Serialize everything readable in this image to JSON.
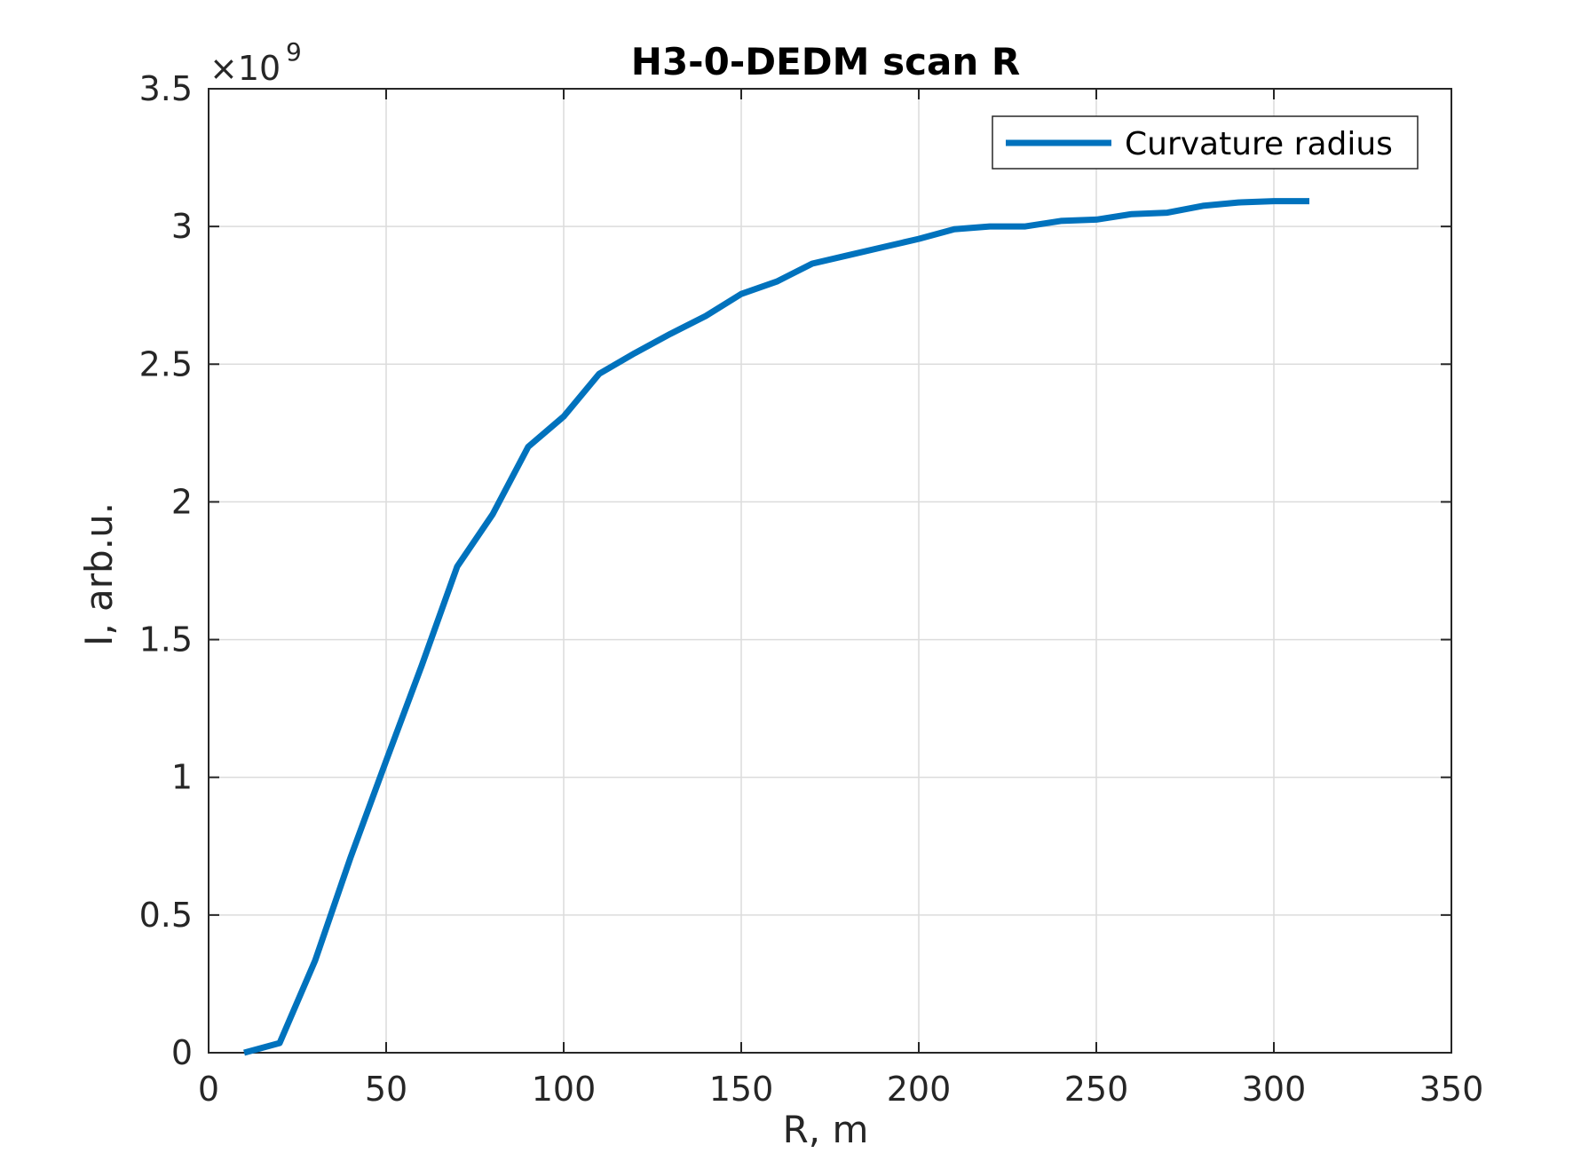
{
  "chart_data": {
    "type": "line",
    "title": "H3-0-DEDM scan R",
    "xlabel": "R, m",
    "ylabel": "I, arb.u.",
    "xlim": [
      0,
      350
    ],
    "ylim": [
      0,
      3.5
    ],
    "xticks": [
      "0",
      "50",
      "100",
      "150",
      "200",
      "250",
      "300",
      "350"
    ],
    "yticks": [
      "0",
      "0.5",
      "1",
      "1.5",
      "2",
      "2.5",
      "3",
      "3.5"
    ],
    "y_exponent": {
      "base": "×10",
      "power": "9"
    },
    "grid": true,
    "legend_position": "top-right",
    "series": [
      {
        "name": "Curvature radius",
        "color": "#0072BD",
        "x": [
          10,
          20,
          30,
          40,
          50,
          60,
          70,
          80,
          90,
          100,
          110,
          120,
          130,
          140,
          150,
          160,
          170,
          180,
          190,
          200,
          210,
          220,
          230,
          240,
          250,
          260,
          270,
          280,
          290,
          300,
          310
        ],
        "y": [
          0.0,
          0.035,
          0.335,
          0.71,
          1.06,
          1.405,
          1.765,
          1.955,
          2.2,
          2.31,
          2.465,
          2.54,
          2.61,
          2.675,
          2.755,
          2.8,
          2.865,
          2.895,
          2.925,
          2.955,
          2.99,
          3.0,
          3.0,
          3.02,
          3.025,
          3.045,
          3.05,
          3.075,
          3.087,
          3.092,
          3.092
        ]
      }
    ]
  }
}
